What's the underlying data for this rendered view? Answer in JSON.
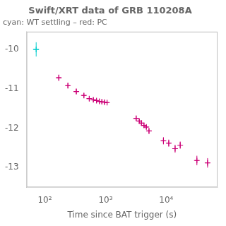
{
  "chart_data": {
    "type": "scatter",
    "title": "Swift/XRT data of GRB 110208A",
    "subtitle": "cyan: WT settling – red: PC",
    "xlabel": "Time since BAT trigger (s)",
    "log": "x",
    "grid": false,
    "xlim": [
      50,
      70000
    ],
    "xticks": [
      {
        "value": 100,
        "label": "10²"
      },
      {
        "value": 1000,
        "label": "10³"
      },
      {
        "value": 10000,
        "label": "10⁴"
      }
    ],
    "ylim": [
      -13.5,
      -9.55
    ],
    "yticks": [
      -13,
      -12,
      -11,
      -10
    ],
    "series": [
      {
        "color": "#00cccc",
        "marker": "+",
        "x": [
          72
        ],
        "values": [
          -10.0
        ],
        "xerr": [
          8
        ],
        "yerr": [
          0.18
        ]
      },
      {
        "color": "#cc0077",
        "marker": "+",
        "x": [
          170,
          240,
          330,
          440,
          540,
          630,
          710,
          790,
          870,
          960,
          1060,
          3200,
          3600,
          3900,
          4300,
          4700,
          5200,
          9000,
          11000,
          14000,
          17000,
          32000,
          48000
        ],
        "values": [
          -10.72,
          -10.92,
          -11.07,
          -11.17,
          -11.25,
          -11.28,
          -11.3,
          -11.32,
          -11.33,
          -11.34,
          -11.35,
          -11.75,
          -11.82,
          -11.87,
          -11.93,
          -11.97,
          -12.07,
          -12.32,
          -12.38,
          -12.52,
          -12.43,
          -12.82,
          -12.88
        ],
        "xerr": [
          15,
          20,
          25,
          35,
          40,
          45,
          50,
          55,
          60,
          65,
          70,
          200,
          220,
          250,
          280,
          310,
          340,
          600,
          800,
          1000,
          1200,
          2500,
          4000
        ],
        "yerr": [
          0.08,
          0.07,
          0.07,
          0.06,
          0.06,
          0.05,
          0.05,
          0.05,
          0.05,
          0.05,
          0.05,
          0.06,
          0.06,
          0.06,
          0.06,
          0.06,
          0.07,
          0.09,
          0.09,
          0.1,
          0.09,
          0.12,
          0.12
        ]
      }
    ]
  }
}
